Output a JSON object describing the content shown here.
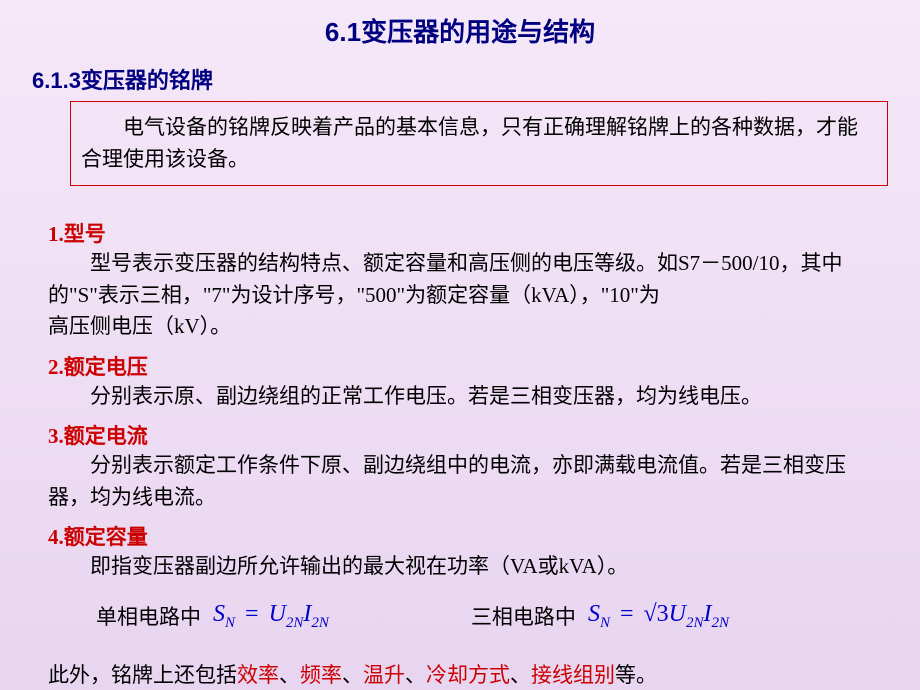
{
  "title": "6.1变压器的用途与结构",
  "subtitle": "6.1.3变压器的铭牌",
  "intro": "电气设备的铭牌反映着产品的基本信息，只有正确理解铭牌上的各种数据，才能合理使用该设备。",
  "sections": {
    "s1": {
      "title": "1.型号",
      "text1": "型号表示变压器的结构特点、额定容量和高压侧的电压等级。如S7－500/10，其中的\"S\"表示三相，\"7\"为设计序号，\"500\"为额定容量（kVA），\"10\"为",
      "text2": "高压侧电压（kV）。"
    },
    "s2": {
      "title": "2.额定电压",
      "text": "分别表示原、副边绕组的正常工作电压。若是三相变压器，均为线电压。"
    },
    "s3": {
      "title": "3.额定电流",
      "text": "分别表示额定工作条件下原、副边绕组中的电流，亦即满载电流值。若是三相变压器，均为线电流。"
    },
    "s4": {
      "title": "4.额定容量",
      "text": "即指变压器副边所允许输出的最大视在功率（VA或kVA）。"
    }
  },
  "formula": {
    "label1": "单相电路中",
    "label2": "三相电路中",
    "f1": {
      "sn": "S",
      "sn_sub": "N",
      "eq": "=",
      "u": "U",
      "u_sub": "2N",
      "i": "I",
      "i_sub": "2N"
    },
    "f2": {
      "sn": "S",
      "sn_sub": "N",
      "eq": "=",
      "sqrt3": "√3",
      "u": "U",
      "u_sub": "2N",
      "i": "I",
      "i_sub": "2N"
    }
  },
  "final": {
    "prefix": "此外，铭牌上还包括",
    "w1": "效率",
    "w2": "频率",
    "w3": "温升",
    "w4": "冷却方式",
    "w5": "接线组别",
    "suffix": "等。",
    "sep": "、"
  }
}
